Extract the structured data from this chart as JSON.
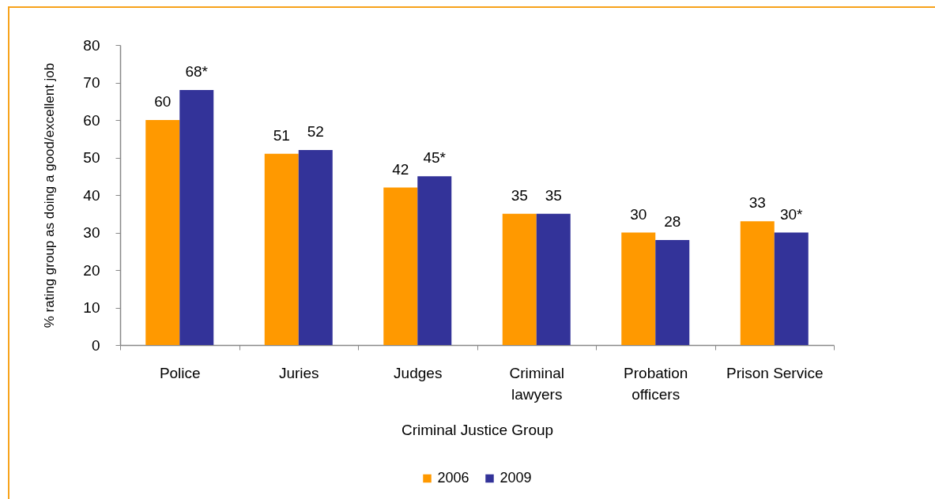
{
  "chart_data": {
    "type": "bar",
    "categories": [
      "Police",
      "Juries",
      "Judges",
      "Criminal lawyers",
      "Probation officers",
      "Prison Service"
    ],
    "series": [
      {
        "name": "2006",
        "color": "#ff9900",
        "values": [
          60,
          51,
          42,
          35,
          30,
          33
        ],
        "value_labels": [
          "60",
          "51",
          "42",
          "35",
          "30",
          "33"
        ]
      },
      {
        "name": "2009",
        "color": "#333399",
        "values": [
          68,
          52,
          45,
          35,
          28,
          30
        ],
        "value_labels": [
          "68*",
          "52",
          "45*",
          "35",
          "28",
          "30*"
        ]
      }
    ],
    "xlabel": "Criminal Justice Group",
    "ylabel": "% rating group as doing a good/excellent job",
    "ylim": [
      0,
      80
    ],
    "yticks": [
      0,
      10,
      20,
      30,
      40,
      50,
      60,
      70,
      80
    ],
    "legend": "bottom"
  }
}
